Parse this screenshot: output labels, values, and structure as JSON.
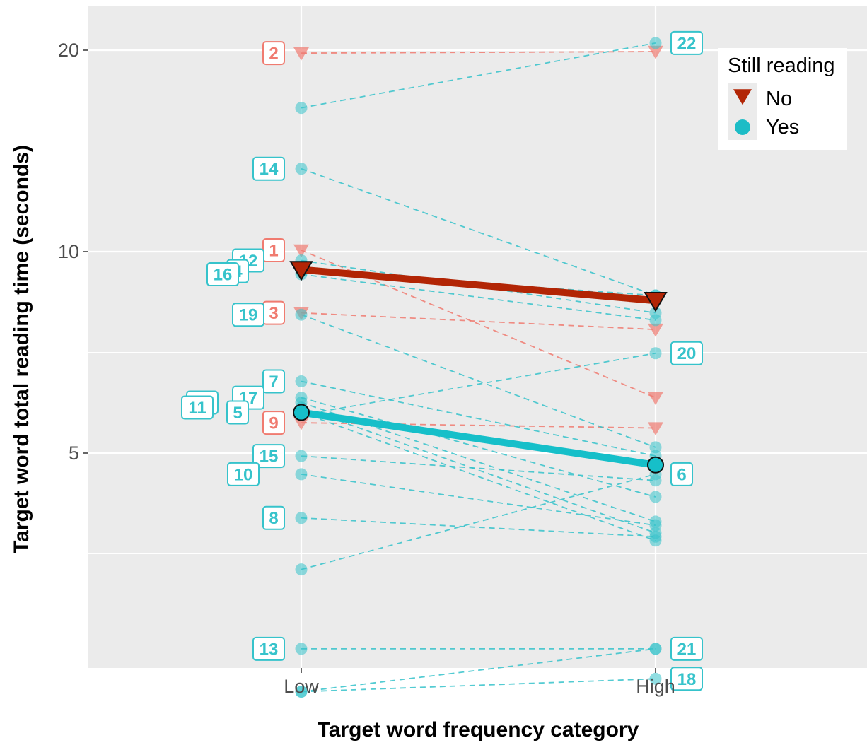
{
  "chart_data": {
    "type": "line",
    "title": "",
    "xlabel": "Target word frequency category",
    "ylabel": "Target word total reading time (seconds)",
    "categories": [
      "Low",
      "High"
    ],
    "y_scale": "log",
    "y_ticks": [
      5,
      10,
      20
    ],
    "y_tick_labels": [
      "5",
      "10",
      "20"
    ],
    "ylim": [
      1.75,
      23.5
    ],
    "grid": true,
    "legend": {
      "title": "Still reading",
      "position": "right-top",
      "entries": [
        {
          "label": "No",
          "shape": "triangle-down",
          "color": "#b22505"
        },
        {
          "label": "Yes",
          "shape": "circle",
          "color": "#1cbcc6"
        }
      ]
    },
    "colors": {
      "no": "#f07b70",
      "yes": "#36c3cb",
      "no_mean": "#b22505",
      "yes_mean": "#16bfc9",
      "panel": "#ebebeb",
      "grid": "#ffffff"
    },
    "series": [
      {
        "name": "No",
        "values": [
          9.4,
          8.45
        ],
        "kind": "mean"
      },
      {
        "name": "Yes",
        "values": [
          5.75,
          4.8
        ],
        "kind": "mean"
      }
    ],
    "participants": [
      {
        "id": "2",
        "group": "No",
        "values": [
          19.8,
          19.9
        ],
        "label_at": "Low"
      },
      {
        "id": "1",
        "group": "No",
        "values": [
          10.05,
          6.05
        ],
        "label_at": "Low"
      },
      {
        "id": "3",
        "group": "No",
        "values": [
          8.1,
          7.65
        ],
        "label_at": "Low"
      },
      {
        "id": "9",
        "group": "No",
        "values": [
          5.55,
          5.45
        ],
        "label_at": "Low"
      },
      {
        "id": "22",
        "group": "Yes",
        "values": [
          16.4,
          20.5
        ],
        "label_at": "High"
      },
      {
        "id": "14",
        "group": "Yes",
        "values": [
          13.3,
          8.6
        ],
        "label_at": "Low"
      },
      {
        "id": "12",
        "group": "Yes",
        "values": [
          9.7,
          8.1
        ],
        "label_at": "Low"
      },
      {
        "id": "4",
        "group": "Yes",
        "values": [
          9.35,
          8.6
        ],
        "label_at": "Low"
      },
      {
        "id": "16",
        "group": "Yes",
        "values": [
          9.25,
          7.9
        ],
        "label_at": "Low"
      },
      {
        "id": "19",
        "group": "Yes",
        "values": [
          8.05,
          5.1
        ],
        "label_at": "Low"
      },
      {
        "id": "20",
        "group": "Yes",
        "values": [
          5.7,
          7.05
        ],
        "label_at": "High"
      },
      {
        "id": "7",
        "group": "Yes",
        "values": [
          6.4,
          4.95
        ],
        "label_at": "Low"
      },
      {
        "id": "17",
        "group": "Yes",
        "values": [
          6.05,
          4.3
        ],
        "label_at": "Low"
      },
      {
        "id": "23",
        "group": "Yes",
        "values": [
          5.95,
          3.95
        ],
        "label_at": "Low"
      },
      {
        "id": "11",
        "group": "Yes",
        "values": [
          5.85,
          3.8
        ],
        "label_at": "Low"
      },
      {
        "id": "5",
        "group": "Yes",
        "values": [
          5.75,
          3.7
        ],
        "label_at": "Low"
      },
      {
        "id": "15",
        "group": "Yes",
        "values": [
          4.95,
          4.55
        ],
        "label_at": "Low"
      },
      {
        "id": "10",
        "group": "Yes",
        "values": [
          4.65,
          3.9
        ],
        "label_at": "Low"
      },
      {
        "id": "8",
        "group": "Yes",
        "values": [
          4.0,
          3.75
        ],
        "label_at": "Low"
      },
      {
        "id": "6",
        "group": "Yes",
        "values": [
          3.35,
          4.65
        ],
        "label_at": "High"
      },
      {
        "id": "13",
        "group": "Yes",
        "values": [
          2.55,
          2.55
        ],
        "label_at": "Low"
      },
      {
        "id": "21",
        "group": "Yes",
        "values": [
          2.2,
          2.55
        ],
        "label_at": "High"
      },
      {
        "id": "18",
        "group": "Yes",
        "values": [
          2.2,
          2.3
        ],
        "label_at": "High"
      }
    ]
  }
}
